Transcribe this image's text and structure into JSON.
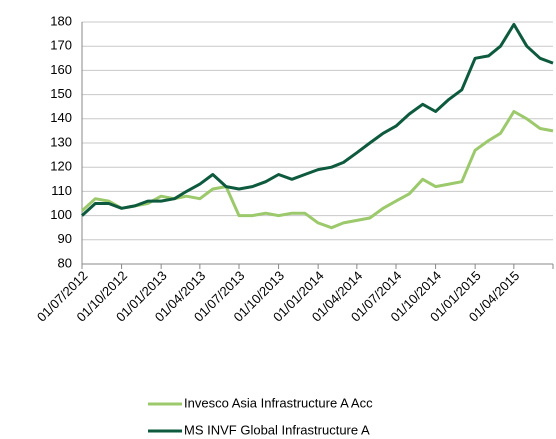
{
  "chart_data": {
    "type": "line",
    "x": [
      "01/07/2012",
      "01/08/2012",
      "01/09/2012",
      "01/10/2012",
      "01/11/2012",
      "01/12/2012",
      "01/01/2013",
      "01/02/2013",
      "01/03/2013",
      "01/04/2013",
      "01/05/2013",
      "01/06/2013",
      "01/07/2013",
      "01/08/2013",
      "01/09/2013",
      "01/10/2013",
      "01/11/2013",
      "01/12/2013",
      "01/01/2014",
      "01/02/2014",
      "01/03/2014",
      "01/04/2014",
      "01/05/2014",
      "01/06/2014",
      "01/07/2014",
      "01/08/2014",
      "01/09/2014",
      "01/10/2014",
      "01/11/2014",
      "01/12/2014",
      "01/01/2015",
      "01/02/2015",
      "01/03/2015",
      "01/04/2015",
      "01/05/2015",
      "01/06/2015",
      "01/07/2015"
    ],
    "series": [
      {
        "name": "Invesco Asia Infrastructure A Acc",
        "color": "#9bc96b",
        "values": [
          102,
          107,
          106,
          103,
          104,
          105,
          108,
          107,
          108,
          107,
          111,
          112,
          100,
          100,
          101,
          100,
          101,
          101,
          97,
          95,
          97,
          98,
          99,
          103,
          106,
          109,
          115,
          112,
          113,
          114,
          127,
          131,
          134,
          143,
          140,
          136,
          135
        ]
      },
      {
        "name": "MS INVF Global Infrastructure A",
        "color": "#0e5a3e",
        "values": [
          100,
          105,
          105,
          103,
          104,
          106,
          106,
          107,
          110,
          113,
          117,
          112,
          111,
          112,
          114,
          117,
          115,
          117,
          119,
          120,
          122,
          126,
          130,
          134,
          137,
          142,
          146,
          143,
          148,
          152,
          165,
          166,
          170,
          179,
          170,
          165,
          163
        ]
      }
    ],
    "xlim": [
      "01/07/2012",
      "01/07/2015"
    ],
    "xticks": [
      "01/07/2012",
      "01/10/2012",
      "01/01/2013",
      "01/04/2013",
      "01/07/2013",
      "01/10/2013",
      "01/01/2014",
      "01/04/2014",
      "01/07/2014",
      "01/10/2014",
      "01/01/2015",
      "01/04/2015"
    ],
    "ylim": [
      80,
      180
    ],
    "yticks": [
      80,
      90,
      100,
      110,
      120,
      130,
      140,
      150,
      160,
      170,
      180
    ],
    "grid": true,
    "legend": "bottom"
  }
}
